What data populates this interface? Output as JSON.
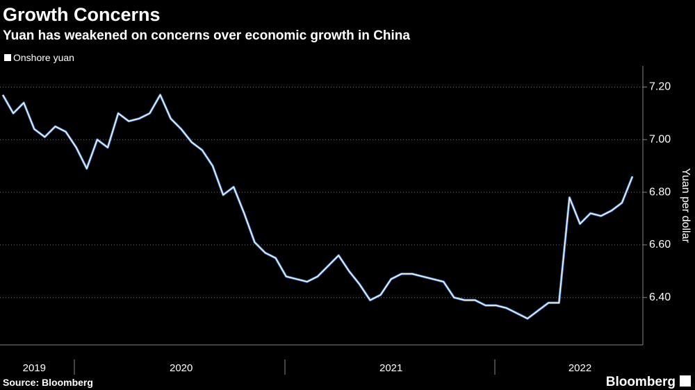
{
  "chart_data": {
    "type": "line",
    "title": "Growth Concerns",
    "subtitle": "Yuan has weakened on concerns over economic growth in China",
    "y_axis_label": "Yuan per dollar",
    "source": "Source: Bloomberg",
    "brand": "Bloomberg",
    "categories": [
      null,
      null,
      null,
      "2019",
      null,
      null,
      null,
      null,
      null,
      null,
      null,
      null,
      null,
      null,
      null,
      null,
      null,
      "2020",
      null,
      null,
      null,
      null,
      null,
      null,
      null,
      null,
      null,
      null,
      null,
      null,
      null,
      null,
      null,
      null,
      null,
      null,
      null,
      "2021",
      null,
      null,
      null,
      null,
      null,
      null,
      null,
      null,
      null,
      null,
      null,
      null,
      null,
      null,
      null,
      null,
      null,
      "2022",
      null,
      null,
      null,
      null,
      null
    ],
    "series": [
      {
        "name": "Onshore yuan",
        "color": "#ffffff",
        "values": [
          7.17,
          7.1,
          7.14,
          7.04,
          7.01,
          7.05,
          7.03,
          6.97,
          6.89,
          7.0,
          6.97,
          7.1,
          7.07,
          7.08,
          7.1,
          7.17,
          7.08,
          7.04,
          6.99,
          6.96,
          6.9,
          6.79,
          6.82,
          6.72,
          6.61,
          6.57,
          6.55,
          6.48,
          6.47,
          6.46,
          6.48,
          6.52,
          6.56,
          6.5,
          6.45,
          6.39,
          6.41,
          6.47,
          6.49,
          6.49,
          6.48,
          6.47,
          6.46,
          6.4,
          6.39,
          6.39,
          6.37,
          6.37,
          6.36,
          6.34,
          6.32,
          6.35,
          6.38,
          6.38,
          6.78,
          6.68,
          6.72,
          6.71,
          6.73,
          6.76,
          6.86
        ]
      }
    ],
    "ylim": [
      6.22,
      7.28
    ],
    "yticks": [
      {
        "value": 6.4,
        "label": "6.40"
      },
      {
        "value": 6.6,
        "label": "6.60"
      },
      {
        "value": 6.8,
        "label": "6.80"
      },
      {
        "value": 7.0,
        "label": "7.00"
      },
      {
        "value": 7.2,
        "label": "7.20"
      }
    ],
    "grid": true,
    "legend": "top-left"
  }
}
